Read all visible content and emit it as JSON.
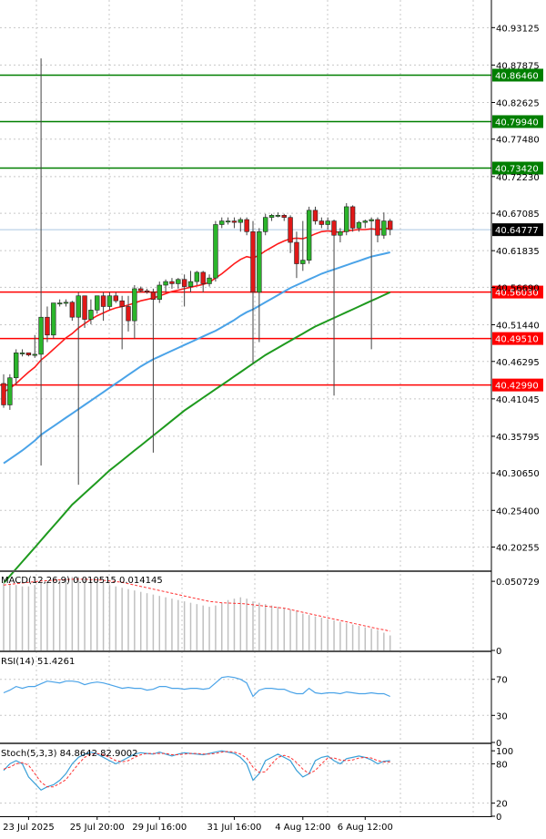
{
  "chart_data": [
    {
      "type": "candlestick",
      "panel": "main",
      "ylim": [
        40.17,
        40.97
      ],
      "yticks": [
        "40.93125",
        "40.87875",
        "40.82625",
        "40.77480",
        "40.72230",
        "40.67085",
        "40.61835",
        "40.56690",
        "40.51440",
        "40.46295",
        "40.41045",
        "40.35795",
        "40.30650",
        "40.25400",
        "40.20255"
      ],
      "yticks_values": [
        40.93125,
        40.87875,
        40.82625,
        40.7748,
        40.7223,
        40.67085,
        40.61835,
        40.5669,
        40.5144,
        40.46295,
        40.41045,
        40.35795,
        40.3065,
        40.254,
        40.20255
      ],
      "current_price": {
        "label": "40.64777",
        "value": 40.64777,
        "color": "#000000"
      },
      "levels": [
        {
          "label": "40.86460",
          "value": 40.8646,
          "color": "#007f00"
        },
        {
          "label": "40.79940",
          "value": 40.7994,
          "color": "#007f00"
        },
        {
          "label": "40.73420",
          "value": 40.7342,
          "color": "#007f00"
        },
        {
          "label": "40.56030",
          "value": 40.5603,
          "color": "#ff0000"
        },
        {
          "label": "40.49510",
          "value": 40.4951,
          "color": "#ff0000"
        },
        {
          "label": "40.42990",
          "value": 40.4299,
          "color": "#ff0000"
        }
      ],
      "candles": [
        {
          "o": 40.432,
          "h": 40.445,
          "l": 40.398,
          "c": 40.402
        },
        {
          "o": 40.402,
          "h": 40.445,
          "l": 40.395,
          "c": 40.44
        },
        {
          "o": 40.44,
          "h": 40.48,
          "l": 40.43,
          "c": 40.475
        },
        {
          "o": 40.475,
          "h": 40.48,
          "l": 40.47,
          "c": 40.475
        },
        {
          "o": 40.475,
          "h": 40.475,
          "l": 40.47,
          "c": 40.472
        },
        {
          "o": 40.472,
          "h": 40.5,
          "l": 40.468,
          "c": 40.473
        },
        {
          "o": 40.473,
          "h": 40.888,
          "l": 40.317,
          "c": 40.525
        },
        {
          "o": 40.525,
          "h": 40.54,
          "l": 40.49,
          "c": 40.5
        },
        {
          "o": 40.5,
          "h": 40.545,
          "l": 40.495,
          "c": 40.545
        },
        {
          "o": 40.545,
          "h": 40.55,
          "l": 40.54,
          "c": 40.545
        },
        {
          "o": 40.545,
          "h": 40.55,
          "l": 40.54,
          "c": 40.546
        },
        {
          "o": 40.546,
          "h": 40.548,
          "l": 40.52,
          "c": 40.525
        },
        {
          "o": 40.525,
          "h": 40.56,
          "l": 40.29,
          "c": 40.555
        },
        {
          "o": 40.555,
          "h": 40.555,
          "l": 40.51,
          "c": 40.522
        },
        {
          "o": 40.522,
          "h": 40.55,
          "l": 40.515,
          "c": 40.535
        },
        {
          "o": 40.535,
          "h": 40.555,
          "l": 40.53,
          "c": 40.555
        },
        {
          "o": 40.555,
          "h": 40.56,
          "l": 40.52,
          "c": 40.54
        },
        {
          "o": 40.54,
          "h": 40.56,
          "l": 40.535,
          "c": 40.555
        },
        {
          "o": 40.555,
          "h": 40.56,
          "l": 40.545,
          "c": 40.548
        },
        {
          "o": 40.548,
          "h": 40.555,
          "l": 40.48,
          "c": 40.54
        },
        {
          "o": 40.54,
          "h": 40.555,
          "l": 40.505,
          "c": 40.52
        },
        {
          "o": 40.52,
          "h": 40.57,
          "l": 40.495,
          "c": 40.565
        },
        {
          "o": 40.565,
          "h": 40.568,
          "l": 40.56,
          "c": 40.562
        },
        {
          "o": 40.562,
          "h": 40.565,
          "l": 40.558,
          "c": 40.56
        },
        {
          "o": 40.56,
          "h": 40.565,
          "l": 40.335,
          "c": 40.55
        },
        {
          "o": 40.55,
          "h": 40.575,
          "l": 40.545,
          "c": 40.57
        },
        {
          "o": 40.57,
          "h": 40.578,
          "l": 40.56,
          "c": 40.575
        },
        {
          "o": 40.575,
          "h": 40.58,
          "l": 40.565,
          "c": 40.572
        },
        {
          "o": 40.572,
          "h": 40.58,
          "l": 40.565,
          "c": 40.578
        },
        {
          "o": 40.578,
          "h": 40.585,
          "l": 40.54,
          "c": 40.568
        },
        {
          "o": 40.568,
          "h": 40.59,
          "l": 40.56,
          "c": 40.575
        },
        {
          "o": 40.575,
          "h": 40.59,
          "l": 40.57,
          "c": 40.588
        },
        {
          "o": 40.588,
          "h": 40.59,
          "l": 40.56,
          "c": 40.572
        },
        {
          "o": 40.572,
          "h": 40.585,
          "l": 40.568,
          "c": 40.58
        },
        {
          "o": 40.58,
          "h": 40.66,
          "l": 40.575,
          "c": 40.655
        },
        {
          "o": 40.655,
          "h": 40.665,
          "l": 40.65,
          "c": 40.66
        },
        {
          "o": 40.66,
          "h": 40.665,
          "l": 40.655,
          "c": 40.66
        },
        {
          "o": 40.66,
          "h": 40.665,
          "l": 40.65,
          "c": 40.658
        },
        {
          "o": 40.658,
          "h": 40.665,
          "l": 40.645,
          "c": 40.662
        },
        {
          "o": 40.662,
          "h": 40.665,
          "l": 40.64,
          "c": 40.645
        },
        {
          "o": 40.645,
          "h": 40.66,
          "l": 40.46,
          "c": 40.56
        },
        {
          "o": 40.56,
          "h": 40.65,
          "l": 40.49,
          "c": 40.645
        },
        {
          "o": 40.645,
          "h": 40.67,
          "l": 40.64,
          "c": 40.665
        },
        {
          "o": 40.665,
          "h": 40.67,
          "l": 40.66,
          "c": 40.668
        },
        {
          "o": 40.668,
          "h": 40.672,
          "l": 40.665,
          "c": 40.668
        },
        {
          "o": 40.668,
          "h": 40.67,
          "l": 40.66,
          "c": 40.665
        },
        {
          "o": 40.665,
          "h": 40.668,
          "l": 40.615,
          "c": 40.63
        },
        {
          "o": 40.63,
          "h": 40.645,
          "l": 40.58,
          "c": 40.6
        },
        {
          "o": 40.6,
          "h": 40.66,
          "l": 40.59,
          "c": 40.605
        },
        {
          "o": 40.605,
          "h": 40.68,
          "l": 40.6,
          "c": 40.675
        },
        {
          "o": 40.675,
          "h": 40.68,
          "l": 40.655,
          "c": 40.66
        },
        {
          "o": 40.66,
          "h": 40.665,
          "l": 40.65,
          "c": 40.655
        },
        {
          "o": 40.655,
          "h": 40.665,
          "l": 40.648,
          "c": 40.66
        },
        {
          "o": 40.66,
          "h": 40.662,
          "l": 40.415,
          "c": 40.64
        },
        {
          "o": 40.64,
          "h": 40.65,
          "l": 40.63,
          "c": 40.645
        },
        {
          "o": 40.645,
          "h": 40.685,
          "l": 40.64,
          "c": 40.68
        },
        {
          "o": 40.68,
          "h": 40.682,
          "l": 40.645,
          "c": 40.65
        },
        {
          "o": 40.65,
          "h": 40.66,
          "l": 40.645,
          "c": 40.658
        },
        {
          "o": 40.658,
          "h": 40.662,
          "l": 40.65,
          "c": 40.66
        },
        {
          "o": 40.66,
          "h": 40.665,
          "l": 40.48,
          "c": 40.662
        },
        {
          "o": 40.662,
          "h": 40.665,
          "l": 40.63,
          "c": 40.64
        },
        {
          "o": 40.64,
          "h": 40.672,
          "l": 40.635,
          "c": 40.66
        },
        {
          "o": 40.66,
          "h": 40.663,
          "l": 40.64,
          "c": 40.648
        }
      ],
      "ma_fast": [
        40.42,
        40.425,
        40.432,
        40.44,
        40.448,
        40.455,
        40.465,
        40.472,
        40.48,
        40.488,
        40.496,
        40.502,
        40.51,
        40.516,
        40.522,
        40.527,
        40.531,
        40.535,
        40.538,
        40.54,
        40.542,
        40.545,
        40.548,
        40.55,
        40.552,
        40.555,
        40.558,
        40.561,
        40.563,
        40.565,
        40.567,
        40.569,
        40.571,
        40.574,
        40.58,
        40.586,
        40.593,
        40.6,
        40.606,
        40.61,
        40.608,
        40.612,
        40.618,
        40.623,
        40.628,
        40.632,
        40.635,
        40.636,
        40.635,
        40.638,
        40.642,
        40.645,
        40.646,
        40.645,
        40.644,
        40.646,
        40.647,
        40.648,
        40.648,
        40.649,
        40.648,
        40.649,
        40.65
      ],
      "ma_mid": [
        40.32,
        40.326,
        40.332,
        40.338,
        40.345,
        40.352,
        40.36,
        40.366,
        40.372,
        40.378,
        40.384,
        40.39,
        40.396,
        40.402,
        40.408,
        40.414,
        40.42,
        40.426,
        40.432,
        40.438,
        40.444,
        40.45,
        40.456,
        40.461,
        40.466,
        40.47,
        40.474,
        40.478,
        40.482,
        40.486,
        40.49,
        40.494,
        40.498,
        40.502,
        40.506,
        40.511,
        40.516,
        40.521,
        40.527,
        40.532,
        40.536,
        40.541,
        40.546,
        40.551,
        40.556,
        40.561,
        40.566,
        40.57,
        40.574,
        40.578,
        40.582,
        40.586,
        40.589,
        40.592,
        40.595,
        40.598,
        40.601,
        40.604,
        40.607,
        40.61,
        40.612,
        40.614,
        40.616
      ],
      "ma_slow": [
        40.152,
        40.162,
        40.172,
        40.182,
        40.192,
        40.202,
        40.212,
        40.222,
        40.232,
        40.242,
        40.252,
        40.262,
        40.27,
        40.278,
        40.286,
        40.294,
        40.302,
        40.31,
        40.317,
        40.324,
        40.331,
        40.338,
        40.345,
        40.352,
        40.359,
        40.366,
        40.373,
        40.38,
        40.387,
        40.394,
        40.4,
        40.406,
        40.412,
        40.418,
        40.424,
        40.43,
        40.436,
        40.442,
        40.448,
        40.454,
        40.46,
        40.466,
        40.472,
        40.477,
        40.482,
        40.487,
        40.492,
        40.497,
        40.502,
        40.507,
        40.512,
        40.516,
        40.52,
        40.524,
        40.528,
        40.532,
        40.536,
        40.54,
        40.544,
        40.548,
        40.552,
        40.556,
        40.56
      ],
      "xtick_labels": [
        "23 Jul 2025",
        "25 Jul 20:00",
        "29 Jul 16:00",
        "31 Jul 16:00",
        "4 Aug 12:00",
        "6 Aug 12:00"
      ],
      "xtick_index": [
        4,
        15,
        25,
        37,
        48,
        58
      ]
    },
    {
      "type": "bar",
      "panel": "macd",
      "label": "MACD(12,26,9) 0.010515 0.014145",
      "ylim": [
        0,
        0.0575
      ],
      "yticks": [
        "0.050729",
        "0"
      ],
      "yticks_values": [
        0.050729,
        0
      ],
      "hist": [
        0.05,
        0.049,
        0.048,
        0.047,
        0.047,
        0.048,
        0.05,
        0.05,
        0.051,
        0.052,
        0.053,
        0.054,
        0.054,
        0.053,
        0.052,
        0.051,
        0.05,
        0.048,
        0.047,
        0.046,
        0.045,
        0.044,
        0.043,
        0.042,
        0.041,
        0.04,
        0.039,
        0.038,
        0.037,
        0.036,
        0.035,
        0.034,
        0.033,
        0.032,
        0.033,
        0.035,
        0.037,
        0.038,
        0.039,
        0.038,
        0.036,
        0.035,
        0.034,
        0.033,
        0.032,
        0.031,
        0.03,
        0.029,
        0.027,
        0.026,
        0.025,
        0.024,
        0.023,
        0.022,
        0.021,
        0.02,
        0.019,
        0.018,
        0.017,
        0.016,
        0.015,
        0.013,
        0.011
      ],
      "signal": [
        0.048,
        0.0485,
        0.049,
        0.0495,
        0.05,
        0.0505,
        0.051,
        0.0512,
        0.0515,
        0.0518,
        0.052,
        0.0522,
        0.0523,
        0.0522,
        0.052,
        0.0518,
        0.0515,
        0.051,
        0.0505,
        0.05,
        0.049,
        0.048,
        0.047,
        0.046,
        0.045,
        0.044,
        0.043,
        0.042,
        0.041,
        0.04,
        0.039,
        0.038,
        0.037,
        0.036,
        0.0355,
        0.035,
        0.0348,
        0.0346,
        0.0344,
        0.034,
        0.0335,
        0.033,
        0.0325,
        0.032,
        0.0315,
        0.031,
        0.03,
        0.029,
        0.028,
        0.027,
        0.026,
        0.025,
        0.024,
        0.023,
        0.022,
        0.021,
        0.02,
        0.019,
        0.018,
        0.017,
        0.016,
        0.0152,
        0.0141
      ]
    },
    {
      "type": "line",
      "panel": "rsi",
      "label": "RSI(14) 51.4261",
      "ylim": [
        0,
        100
      ],
      "yticks": [
        "70",
        "30",
        "0"
      ],
      "yticks_values": [
        70,
        30,
        0
      ],
      "values": [
        55,
        58,
        62,
        60,
        62,
        62,
        65,
        68,
        67,
        66,
        68,
        68,
        67,
        64,
        66,
        67,
        66,
        64,
        62,
        60,
        61,
        60,
        60,
        58,
        59,
        62,
        62,
        60,
        60,
        59,
        60,
        60,
        59,
        60,
        66,
        72,
        73,
        72,
        70,
        66,
        51,
        58,
        60,
        60,
        59,
        59,
        56,
        54,
        54,
        60,
        55,
        54,
        55,
        55,
        54,
        56,
        55,
        54,
        54,
        55,
        54,
        54,
        51
      ]
    },
    {
      "type": "line",
      "panel": "stoch",
      "label": "Stoch(5,3,3) 84.8642 82.9002",
      "ylim": [
        0,
        110
      ],
      "yticks": [
        "100",
        "80",
        "20",
        "0"
      ],
      "yticks_values": [
        100,
        80,
        20,
        0
      ],
      "k": [
        70,
        80,
        85,
        80,
        60,
        50,
        40,
        45,
        48,
        55,
        65,
        80,
        90,
        95,
        98,
        95,
        90,
        85,
        80,
        85,
        90,
        95,
        97,
        96,
        95,
        98,
        95,
        92,
        95,
        97,
        96,
        95,
        94,
        96,
        98,
        100,
        98,
        96,
        90,
        80,
        55,
        65,
        85,
        90,
        95,
        90,
        85,
        70,
        60,
        65,
        85,
        90,
        92,
        85,
        80,
        88,
        90,
        92,
        90,
        86,
        80,
        84,
        85
      ],
      "d": [
        72,
        75,
        80,
        82,
        78,
        65,
        52,
        45,
        45,
        50,
        56,
        68,
        80,
        90,
        95,
        96,
        94,
        90,
        85,
        83,
        85,
        90,
        94,
        96,
        96,
        96,
        96,
        94,
        94,
        95,
        96,
        96,
        95,
        95,
        96,
        98,
        99,
        98,
        95,
        89,
        75,
        67,
        68,
        80,
        90,
        93,
        90,
        82,
        72,
        65,
        70,
        80,
        89,
        89,
        86,
        85,
        86,
        89,
        90,
        89,
        85,
        83,
        83
      ]
    }
  ]
}
